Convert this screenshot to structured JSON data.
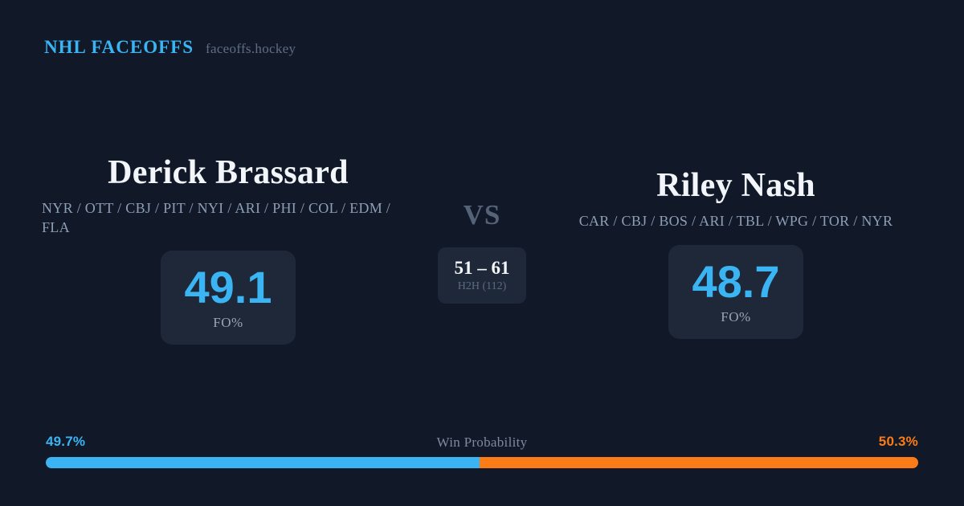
{
  "header": {
    "brand": "NHL FACEOFFS",
    "site": "faceoffs.hockey"
  },
  "players": {
    "left": {
      "name": "Derick Brassard",
      "teams": "NYR / OTT / CBJ / PIT / NYI / ARI / PHI / COL / EDM / FLA",
      "fo_value": "49.1",
      "fo_label": "FO%"
    },
    "right": {
      "name": "Riley Nash",
      "teams": "CAR / CBJ / BOS / ARI / TBL / WPG / TOR / NYR",
      "fo_value": "48.7",
      "fo_label": "FO%"
    }
  },
  "matchup": {
    "vs_label": "VS",
    "h2h_score": "51 – 61",
    "h2h_label": "H2H (112)"
  },
  "win_probability": {
    "title": "Win Probability",
    "left_label": "49.7%",
    "right_label": "50.3%",
    "left_value": 49.7,
    "right_value": 50.3
  },
  "colors": {
    "background": "#111929",
    "card": "#1e2838",
    "accent_blue": "#3ab4f2",
    "accent_orange": "#f97c16",
    "text_primary": "#f2f5f9",
    "text_muted": "#8e9eb4"
  }
}
